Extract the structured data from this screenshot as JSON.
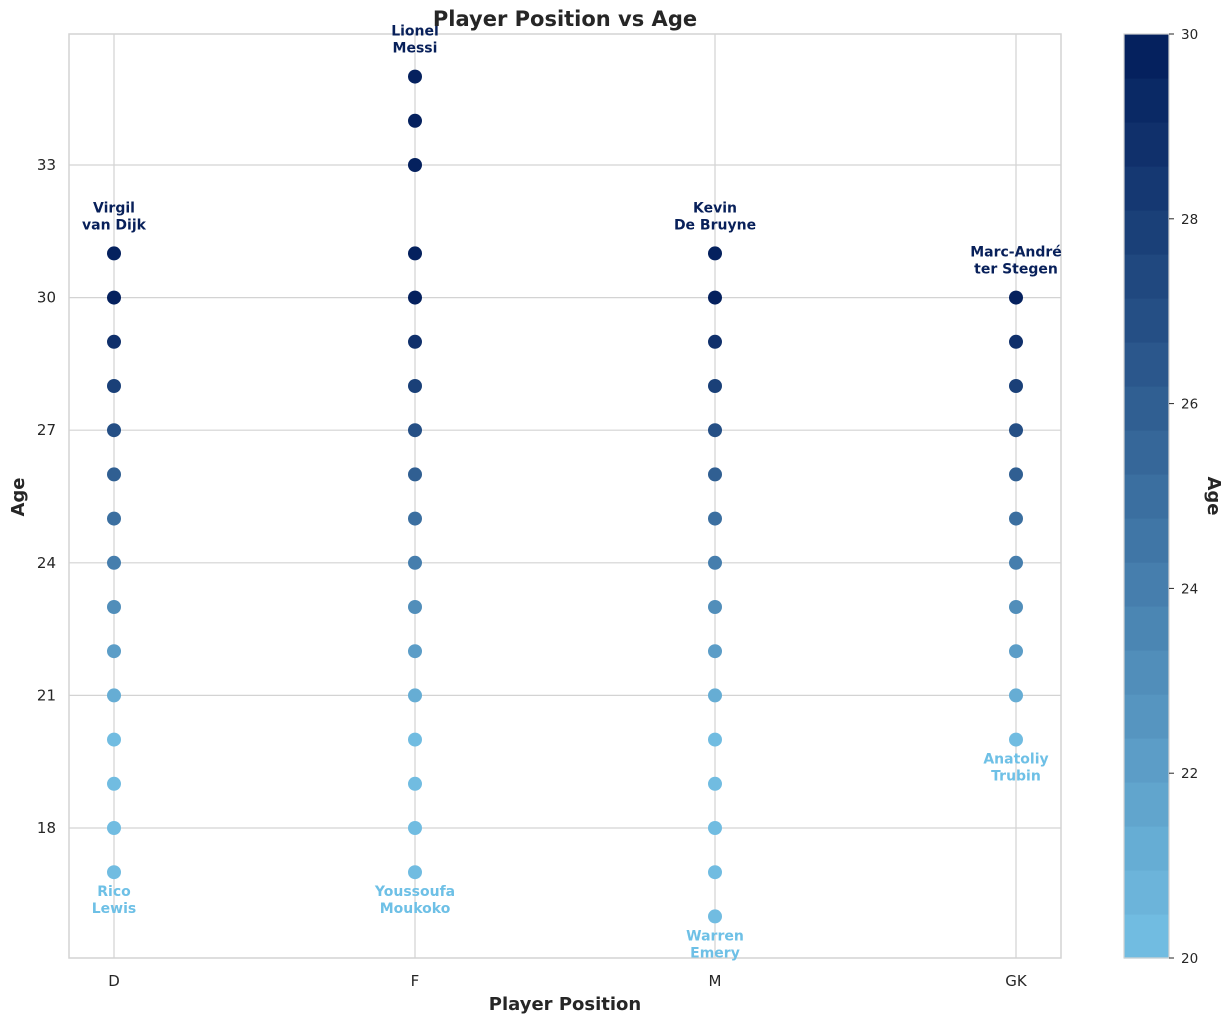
{
  "chart_data": {
    "type": "scatter",
    "title": "Player Position vs Age",
    "xlabel": "Player Position",
    "ylabel": "Age",
    "categories": [
      "D",
      "F",
      "M",
      "GK"
    ],
    "yticks": [
      18,
      21,
      24,
      27,
      30,
      33
    ],
    "ylim": [
      14.2,
      35.1
    ],
    "grid": true,
    "points": [
      {
        "position": "D",
        "ages": [
          17,
          18,
          19,
          20,
          21,
          22,
          23,
          24,
          25,
          26,
          27,
          28,
          29,
          30,
          31
        ]
      },
      {
        "position": "F",
        "ages": [
          17,
          18,
          19,
          20,
          21,
          22,
          23,
          24,
          25,
          26,
          27,
          28,
          29,
          30,
          31,
          33,
          34,
          35
        ]
      },
      {
        "position": "M",
        "ages": [
          16,
          17,
          18,
          19,
          20,
          21,
          22,
          23,
          24,
          25,
          26,
          27,
          28,
          29,
          30,
          31
        ]
      },
      {
        "position": "GK",
        "ages": [
          20,
          21,
          22,
          23,
          24,
          25,
          26,
          27,
          28,
          29,
          30
        ]
      }
    ],
    "annotations": [
      {
        "position": "D",
        "age": 31,
        "text": [
          "Virgil",
          "van Dijk"
        ],
        "placement": "above",
        "color": "#08205a"
      },
      {
        "position": "F",
        "age": 35,
        "text": [
          "Lionel",
          "Messi"
        ],
        "placement": "above",
        "color": "#08205a"
      },
      {
        "position": "M",
        "age": 31,
        "text": [
          "Kevin",
          "De Bruyne"
        ],
        "placement": "above",
        "color": "#08205a"
      },
      {
        "position": "GK",
        "age": 30,
        "text": [
          "Marc-André",
          "ter Stegen"
        ],
        "placement": "above",
        "color": "#08205a"
      },
      {
        "position": "D",
        "age": 17,
        "text": [
          "Rico",
          "Lewis"
        ],
        "placement": "below",
        "color": "#6ec0e6"
      },
      {
        "position": "F",
        "age": 17,
        "text": [
          "Youssoufa",
          "Moukoko"
        ],
        "placement": "below",
        "color": "#6ec0e6"
      },
      {
        "position": "M",
        "age": 16,
        "text": [
          "Warren",
          "Emery"
        ],
        "placement": "below",
        "color": "#6ec0e6"
      },
      {
        "position": "GK",
        "age": 20,
        "text": [
          "Anatoliy",
          "Trubin"
        ],
        "placement": "below",
        "color": "#6ec0e6"
      }
    ],
    "colorbar": {
      "label": "Age",
      "min": 20,
      "max": 30,
      "ticks": [
        20,
        22,
        24,
        26,
        28,
        30
      ],
      "levels": 21,
      "color_low": "#74c0e4",
      "color_high": "#021d5b"
    }
  }
}
